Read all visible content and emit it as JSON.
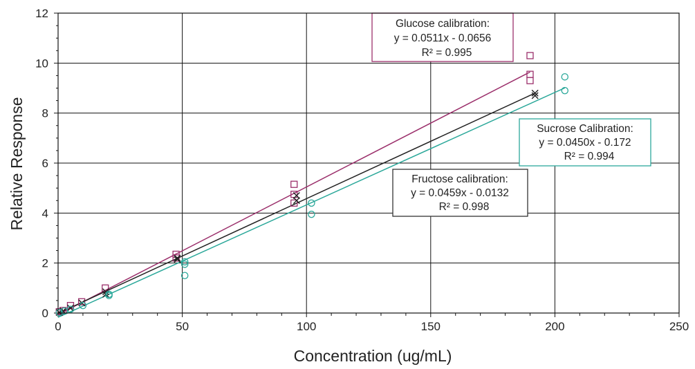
{
  "chart_data": {
    "type": "scatter",
    "xlabel": "Concentration (ug/mL)",
    "ylabel": "Relative Response",
    "xlim": [
      0,
      250
    ],
    "ylim": [
      0,
      12
    ],
    "x_ticks": [
      0,
      50,
      100,
      150,
      200,
      250
    ],
    "y_ticks": [
      0,
      2,
      4,
      6,
      8,
      10,
      12
    ],
    "grid": true,
    "series": [
      {
        "marker": "square",
        "color": "#9b2f6b",
        "points": [
          [
            0.5,
            0.05
          ],
          [
            2,
            0.1
          ],
          [
            5,
            0.3
          ],
          [
            9.5,
            0.45
          ],
          [
            19,
            1.0
          ],
          [
            47.5,
            2.35
          ],
          [
            47.5,
            2.2
          ],
          [
            95,
            5.15
          ],
          [
            95,
            4.75
          ],
          [
            95,
            4.4
          ],
          [
            190,
            10.3
          ],
          [
            190,
            9.55
          ],
          [
            190,
            9.3
          ]
        ],
        "fit": {
          "slope": 0.0511,
          "intercept": -0.0656,
          "x_range": [
            0,
            190
          ]
        }
      },
      {
        "marker": "x",
        "color": "#222222",
        "points": [
          [
            0.5,
            0.02
          ],
          [
            2,
            0.08
          ],
          [
            5,
            0.2
          ],
          [
            9.6,
            0.4
          ],
          [
            19.2,
            0.75
          ],
          [
            19.2,
            0.85
          ],
          [
            48,
            2.15
          ],
          [
            48,
            2.2
          ],
          [
            96,
            4.7
          ],
          [
            96,
            4.5
          ],
          [
            192,
            8.8
          ],
          [
            192,
            8.7
          ]
        ],
        "fit": {
          "slope": 0.0459,
          "intercept": -0.0132,
          "x_range": [
            0,
            192
          ]
        }
      },
      {
        "marker": "circle",
        "color": "#2ba89a",
        "points": [
          [
            0.5,
            0.02
          ],
          [
            2.5,
            0.08
          ],
          [
            5,
            0.15
          ],
          [
            10,
            0.3
          ],
          [
            20.5,
            0.7
          ],
          [
            20.5,
            0.75
          ],
          [
            51,
            2.05
          ],
          [
            51,
            1.95
          ],
          [
            51,
            1.5
          ],
          [
            102,
            4.4
          ],
          [
            102,
            3.95
          ],
          [
            204,
            9.45
          ],
          [
            204,
            8.9
          ]
        ],
        "fit": {
          "slope": 0.045,
          "intercept": -0.172,
          "x_range": [
            0,
            204
          ]
        }
      }
    ],
    "annotations": [
      {
        "lines": [
          "Glucose calibration:",
          "y = 0.0511x - 0.0656",
          "R² = 0.995"
        ],
        "border_color": "#9b2f6b"
      },
      {
        "lines": [
          "Sucrose Calibration:",
          "y = 0.0450x - 0.172",
          "R² = 0.994"
        ],
        "border_color": "#2ba89a"
      },
      {
        "lines": [
          "Fructose calibration:",
          "y = 0.0459x - 0.0132",
          "R² = 0.998"
        ],
        "border_color": "#333333"
      }
    ]
  }
}
